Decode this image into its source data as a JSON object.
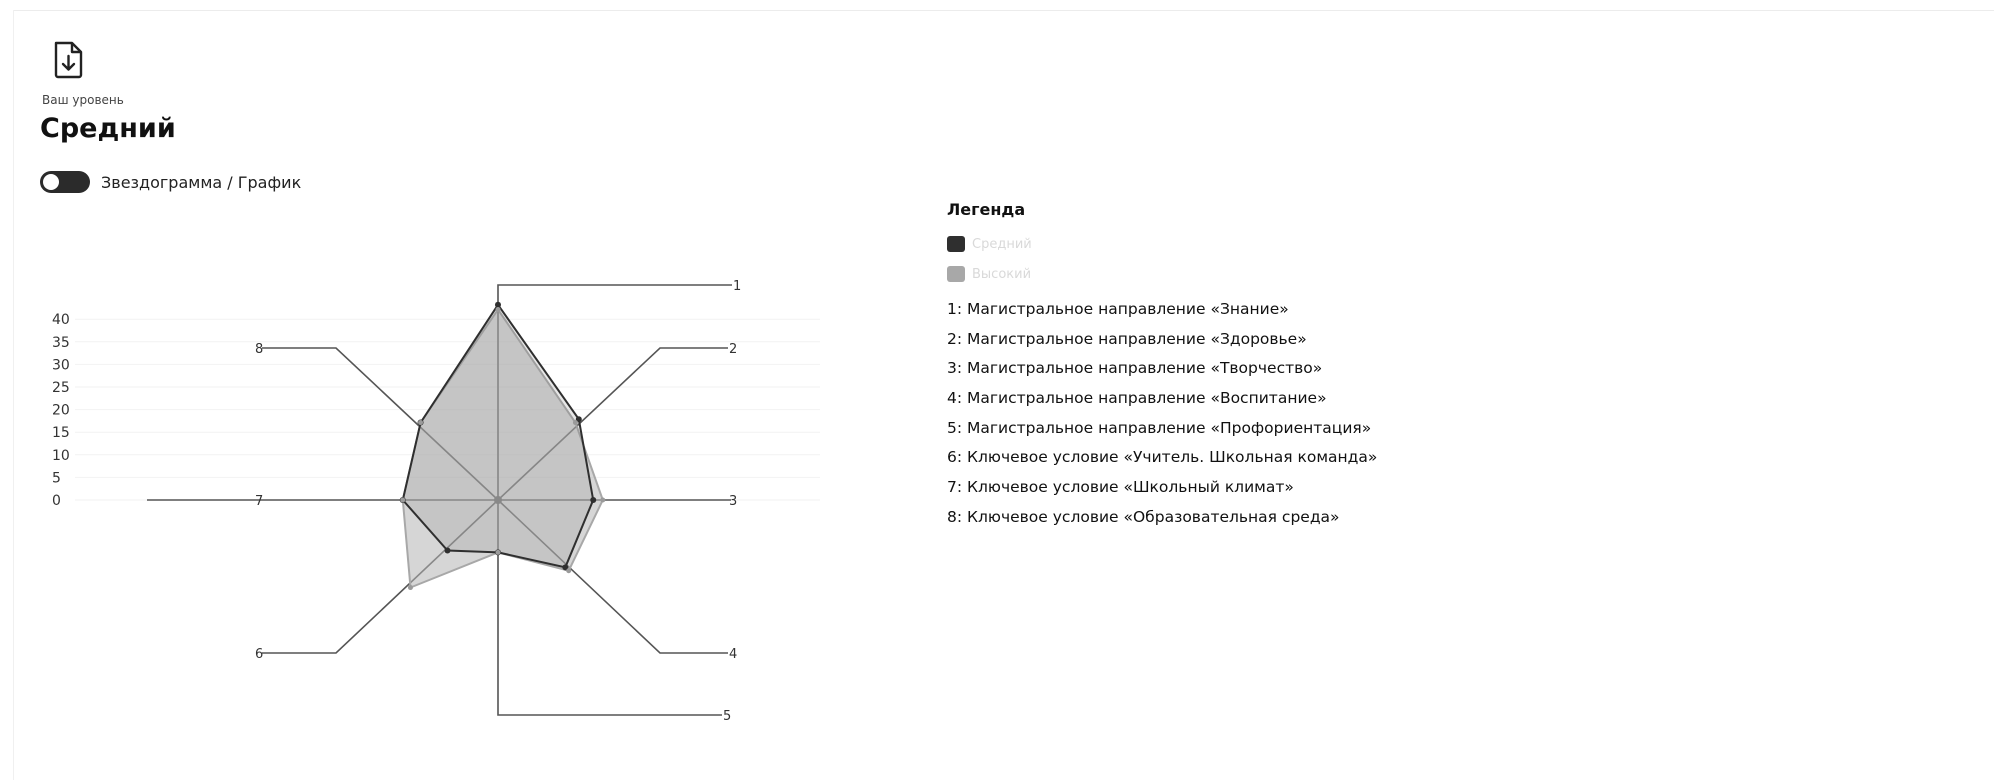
{
  "header": {
    "download_icon": "file-download-icon",
    "level_label": "Ваш уровень",
    "level_value": "Средний"
  },
  "toggle": {
    "label": "Звездограмма / График",
    "on": true
  },
  "legend": {
    "title": "Легенда",
    "series": [
      {
        "label": "Средний",
        "color": "#2f2f2f"
      },
      {
        "label": "Высокий",
        "color": "#a8a8a8"
      }
    ],
    "axes": [
      "1: Магистральное направление «Знание»",
      "2: Магистральное направление «Здоровье»",
      "3: Магистральное направление «Творчество»",
      "4: Магистральное направление «Воспитание»",
      "5: Магистральное направление «Профориентация»",
      "6: Ключевое условие «Учитель. Школьная команда»",
      "7: Ключевое условие «Школьный климат»",
      "8: Ключевое условие «Образовательная среда»"
    ]
  },
  "chart_data": {
    "type": "radar",
    "categories": [
      "1",
      "2",
      "3",
      "4",
      "5",
      "6",
      "7",
      "8"
    ],
    "y_ticks": [
      0,
      5,
      10,
      15,
      20,
      25,
      30,
      35,
      40
    ],
    "ylim": [
      0,
      42
    ],
    "series": [
      {
        "name": "Средний",
        "color": "#2f2f2f",
        "values": [
          41,
          24,
          20,
          20,
          11,
          15,
          20,
          23
        ]
      },
      {
        "name": "Высокий",
        "color": "#a8a8a8",
        "values": [
          40,
          23,
          22,
          21,
          11,
          26,
          20,
          23
        ]
      }
    ]
  }
}
